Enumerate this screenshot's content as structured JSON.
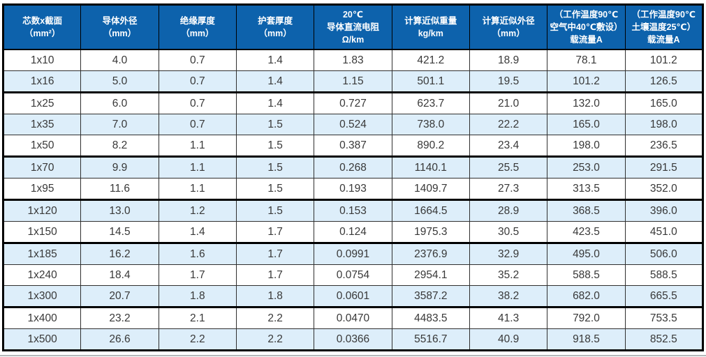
{
  "colors": {
    "header_bg": "#0d62ac",
    "header_text": "#ffffff",
    "row_alt_bg": "#ddeefa",
    "row_bg": "#ffffff",
    "thin_line": "#2f2f2f",
    "thick_line": "#000000",
    "body_text": "#383838"
  },
  "table": {
    "headers": [
      {
        "lines": [
          "芯数x截面",
          "（mm²）"
        ]
      },
      {
        "lines": [
          "导体外径",
          "（mm）"
        ]
      },
      {
        "lines": [
          "绝缘厚度",
          "（mm）"
        ]
      },
      {
        "lines": [
          "护套厚度",
          "（mm）"
        ]
      },
      {
        "lines": [
          "20℃",
          "导体直流电阻",
          "Ω/km"
        ]
      },
      {
        "lines": [
          "计算近似重量",
          "kg/km"
        ]
      },
      {
        "lines": [
          "计算近似外径",
          "（mm）"
        ]
      },
      {
        "lines": [
          "（工作温度90℃",
          "空气中40℃敷设）",
          "载流量A"
        ]
      },
      {
        "lines": [
          "（工作温度90℃",
          "土壤温度25℃）",
          "载流量A"
        ]
      }
    ],
    "rows": [
      {
        "cells": [
          "1x10",
          "4.0",
          "0.7",
          "1.4",
          "1.83",
          "421.2",
          "18.9",
          "78.1",
          "101.2"
        ],
        "thick_bottom": false
      },
      {
        "cells": [
          "1x16",
          "5.0",
          "0.7",
          "1.4",
          "1.15",
          "501.1",
          "19.5",
          "101.2",
          "126.5"
        ],
        "thick_bottom": true
      },
      {
        "cells": [
          "1x25",
          "6.0",
          "0.7",
          "1.4",
          "0.727",
          "623.7",
          "21.0",
          "132.0",
          "165.0"
        ],
        "thick_bottom": false
      },
      {
        "cells": [
          "1x35",
          "7.0",
          "0.7",
          "1.5",
          "0.524",
          "738.0",
          "22.2",
          "165.0",
          "198.0"
        ],
        "thick_bottom": false
      },
      {
        "cells": [
          "1x50",
          "8.2",
          "1.1",
          "1.5",
          "0.387",
          "890.2",
          "23.4",
          "198.0",
          "236.5"
        ],
        "thick_bottom": true
      },
      {
        "cells": [
          "1x70",
          "9.9",
          "1.1",
          "1.5",
          "0.268",
          "1140.1",
          "25.5",
          "253.0",
          "291.5"
        ],
        "thick_bottom": false
      },
      {
        "cells": [
          "1x95",
          "11.6",
          "1.1",
          "1.5",
          "0.193",
          "1409.7",
          "27.3",
          "313.5",
          "352.0"
        ],
        "thick_bottom": true
      },
      {
        "cells": [
          "1x120",
          "13.0",
          "1.2",
          "1.5",
          "0.153",
          "1664.5",
          "28.9",
          "368.5",
          "396.0"
        ],
        "thick_bottom": false
      },
      {
        "cells": [
          "1x150",
          "14.5",
          "1.4",
          "1.7",
          "0.124",
          "1975.3",
          "30.5",
          "423.5",
          "451.0"
        ],
        "thick_bottom": true
      },
      {
        "cells": [
          "1x185",
          "16.2",
          "1.6",
          "1.7",
          "0.0991",
          "2376.9",
          "32.9",
          "495.0",
          "506.0"
        ],
        "thick_bottom": false
      },
      {
        "cells": [
          "1x240",
          "18.4",
          "1.7",
          "1.7",
          "0.0754",
          "2954.1",
          "35.2",
          "588.5",
          "588.5"
        ],
        "thick_bottom": false
      },
      {
        "cells": [
          "1x300",
          "20.7",
          "1.8",
          "1.8",
          "0.0601",
          "3587.2",
          "38.2",
          "682.0",
          "665.5"
        ],
        "thick_bottom": true
      },
      {
        "cells": [
          "1x400",
          "23.2",
          "2.1",
          "2.2",
          "0.0470",
          "4483.5",
          "41.3",
          "792.0",
          "753.5"
        ],
        "thick_bottom": false
      },
      {
        "cells": [
          "1x500",
          "26.6",
          "2.2",
          "2.2",
          "0.0366",
          "5516.7",
          "40.9",
          "918.5",
          "852.5"
        ],
        "thick_bottom": false
      }
    ]
  }
}
